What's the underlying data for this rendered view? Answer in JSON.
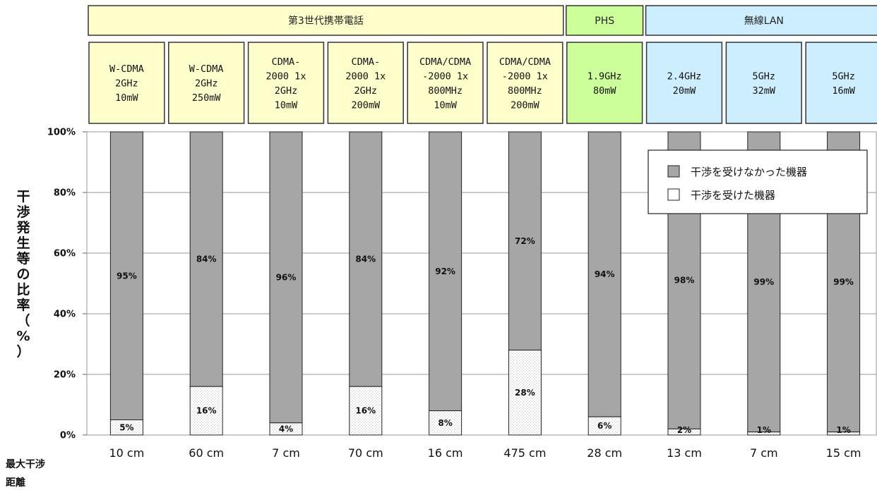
{
  "chart_data": {
    "type": "bar",
    "stacked": true,
    "groups": [
      {
        "label": "第3世代携帯電話",
        "color": "#ffffcc",
        "count": 6
      },
      {
        "label": "PHS",
        "color": "#ccff99",
        "count": 1
      },
      {
        "label": "無線LAN",
        "color": "#cceeff",
        "count": 3
      }
    ],
    "devices": [
      [
        "W-CDMA",
        "2GHz",
        "10mW"
      ],
      [
        "W-CDMA",
        "2GHz",
        "250mW"
      ],
      [
        "CDMA-",
        "2000 1x",
        "2GHz",
        "10mW"
      ],
      [
        "CDMA-",
        "2000 1x",
        "2GHz",
        "200mW"
      ],
      [
        "CDMA/CDMA",
        "-2000 1x",
        "800MHz",
        "10mW"
      ],
      [
        "CDMA/CDMA",
        "-2000 1x",
        "800MHz",
        "200mW"
      ],
      [
        "1.9GHz",
        "80mW"
      ],
      [
        "2.4GHz",
        "20mW"
      ],
      [
        "5GHz",
        "32mW"
      ],
      [
        "5GHz",
        "16mW"
      ]
    ],
    "series": [
      {
        "name": "干渉を受けなかった機器",
        "color": "#a6a6a6",
        "values": [
          95,
          84,
          96,
          84,
          92,
          72,
          94,
          98,
          99,
          99
        ],
        "labels": [
          "95%",
          "84%",
          "96%",
          "84%",
          "92%",
          "72%",
          "94%",
          "98%",
          "99%",
          "99%"
        ]
      },
      {
        "name": "干渉を受けた機器",
        "color": "#ffffff",
        "values": [
          5,
          16,
          4,
          16,
          8,
          28,
          6,
          2,
          1,
          1
        ],
        "labels": [
          "5%",
          "16%",
          "4%",
          "16%",
          "8%",
          "28%",
          "6%",
          "2%",
          "1%",
          "1%"
        ]
      }
    ],
    "distances": [
      "10 cm",
      "60 cm",
      "7 cm",
      "70 cm",
      "16 cm",
      "475 cm",
      "28 cm",
      "13 cm",
      "7 cm",
      "15 cm"
    ],
    "ylabel": "干渉発生等の比率（%）",
    "ylim": [
      0,
      100
    ],
    "yticks": [
      "0%",
      "20%",
      "40%",
      "60%",
      "80%",
      "100%"
    ],
    "distance_label": [
      "最大干涉",
      "距離"
    ],
    "legend_position": "top-right",
    "grid": true
  }
}
